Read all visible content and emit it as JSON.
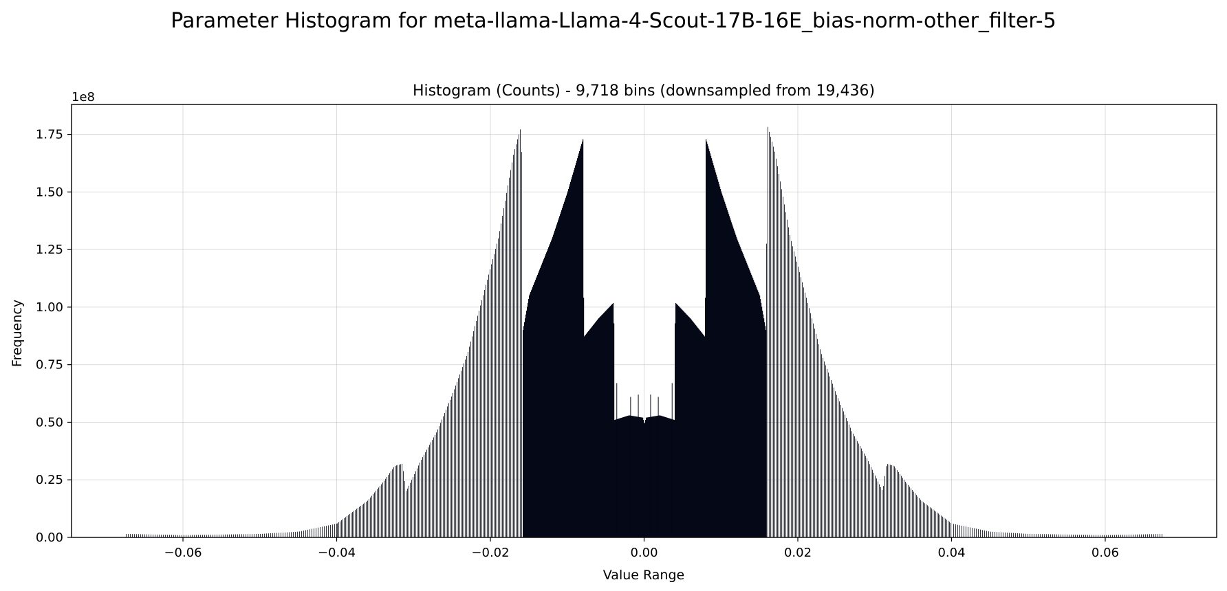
{
  "chart_data": {
    "type": "bar",
    "title": "Parameter Histogram for meta-llama-Llama-4-Scout-17B-16E_bias-norm-other_filter-5",
    "subtitle": "Histogram (Counts) - 9,718 bins (downsampled from 19,436)",
    "xlabel": "Value Range",
    "ylabel": "Frequency",
    "y_scale_label": "1e8",
    "xlim": [
      -0.0745,
      0.0745
    ],
    "ylim": [
      0,
      1.88
    ],
    "x_ticks": [
      -0.06,
      -0.04,
      -0.02,
      0.0,
      0.02,
      0.04,
      0.06
    ],
    "x_tick_labels": [
      "−0.06",
      "−0.04",
      "−0.02",
      "0.00",
      "0.02",
      "0.04",
      "0.06"
    ],
    "y_ticks": [
      0,
      0.25,
      0.5,
      0.75,
      1.0,
      1.25,
      1.5,
      1.75
    ],
    "y_tick_labels": [
      "0.00",
      "0.25",
      "0.50",
      "0.75",
      "1.00",
      "1.25",
      "1.50",
      "1.75"
    ],
    "grid": true,
    "bar_color": "#050816",
    "series_envelope": {
      "note_units": "x in value units, y in 1e8 counts",
      "x": [
        -0.0675,
        -0.06,
        -0.05,
        -0.045,
        -0.04,
        -0.038,
        -0.036,
        -0.034,
        -0.0325,
        -0.0315,
        -0.031,
        -0.029,
        -0.027,
        -0.025,
        -0.023,
        -0.021,
        -0.019,
        -0.017,
        -0.016,
        -0.0158,
        -0.015,
        -0.012,
        -0.01,
        -0.008,
        -0.0079,
        -0.006,
        -0.004,
        -0.0039,
        -0.002,
        -0.0002,
        0.0,
        0.0002,
        0.002,
        0.0039,
        0.004,
        0.006,
        0.0079,
        0.008,
        0.01,
        0.012,
        0.015,
        0.0158,
        0.016,
        0.017,
        0.019,
        0.021,
        0.023,
        0.025,
        0.027,
        0.029,
        0.031,
        0.0315,
        0.0325,
        0.034,
        0.036,
        0.038,
        0.04,
        0.045,
        0.05,
        0.06,
        0.0675
      ],
      "y": [
        0.015,
        0.01,
        0.015,
        0.025,
        0.06,
        0.11,
        0.16,
        0.24,
        0.31,
        0.32,
        0.2,
        0.34,
        0.46,
        0.62,
        0.8,
        1.05,
        1.3,
        1.67,
        1.79,
        0.9,
        1.05,
        1.3,
        1.5,
        1.73,
        0.87,
        0.95,
        1.02,
        0.51,
        0.53,
        0.52,
        0.49,
        0.52,
        0.53,
        0.51,
        1.02,
        0.95,
        0.87,
        1.73,
        1.5,
        1.3,
        1.05,
        0.9,
        1.79,
        1.67,
        1.3,
        1.05,
        0.8,
        0.62,
        0.46,
        0.34,
        0.2,
        0.32,
        0.31,
        0.24,
        0.16,
        0.11,
        0.06,
        0.025,
        0.015,
        0.01,
        0.015
      ]
    },
    "spikes": {
      "x": [
        -0.0036,
        -0.0018,
        -0.0008,
        0.0008,
        0.0018,
        0.0036
      ],
      "y": [
        0.67,
        0.61,
        0.62,
        0.62,
        0.61,
        0.67
      ]
    }
  }
}
